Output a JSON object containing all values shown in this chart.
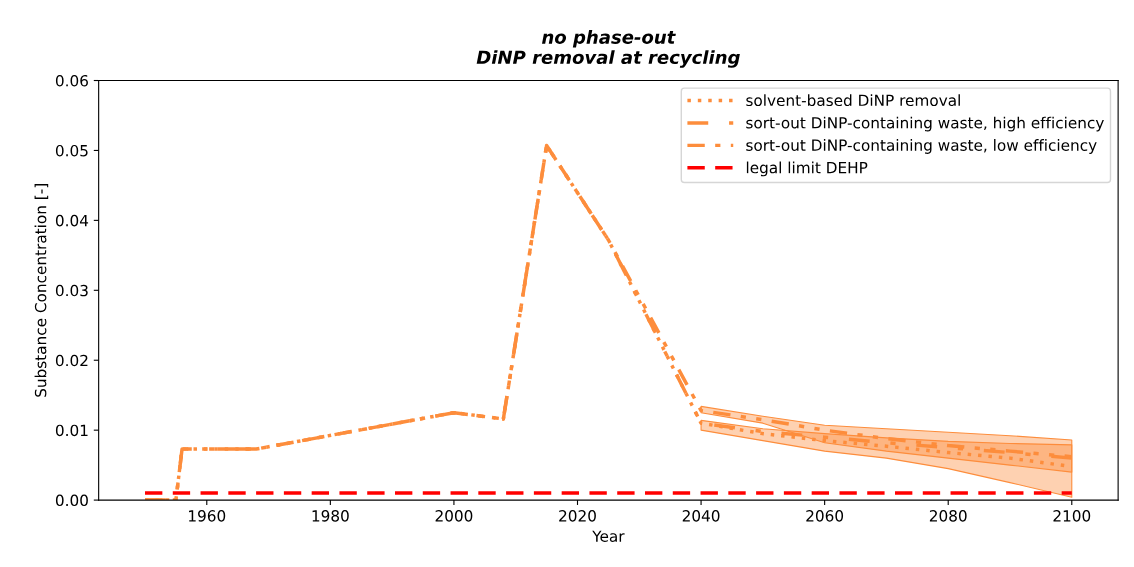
{
  "chart_data": {
    "type": "line",
    "title": "no phase-out\nDiNP removal at recycling",
    "xlabel": "Year",
    "ylabel": "Substance Concentration [-]",
    "x": [
      1950,
      1955,
      1956,
      1968,
      2000,
      2008,
      2015,
      2025,
      2040,
      2050,
      2060,
      2070,
      2080,
      2090,
      2100
    ],
    "xlim": [
      1942.5,
      2107.5
    ],
    "xticks": [
      1960,
      1980,
      2000,
      2020,
      2040,
      2060,
      2080,
      2100
    ],
    "ylim": [
      0,
      0.06
    ],
    "yticks": [
      {
        "value": 0,
        "label": "0.00"
      },
      0.01,
      0.02,
      0.03,
      0.04,
      0.05,
      0.06
    ],
    "grid": false,
    "legend": "top right",
    "series": [
      {
        "name": "solvent-based DiNP removal",
        "color": "#fd8d3c",
        "line_style": "dotted",
        "values": [
          0,
          0,
          0.0073,
          0.0073,
          0.0125,
          0.0116,
          0.0507,
          0.0372,
          0.011,
          0.0095,
          0.0085,
          0.0077,
          0.0068,
          0.006,
          0.0048
        ]
      },
      {
        "name": "sort-out DiNP-containing waste, high efficiency",
        "color": "#fd8d3c",
        "line_style": "dashdot",
        "values": [
          0,
          0,
          0.0073,
          0.0073,
          0.0125,
          0.0116,
          0.0507,
          0.0372,
          0.011,
          0.0098,
          0.009,
          0.0082,
          0.0075,
          0.0068,
          0.006
        ],
        "lower": [
          null,
          null,
          null,
          null,
          null,
          null,
          null,
          null,
          0.01,
          0.0085,
          0.007,
          0.006,
          0.0045,
          0.0025,
          0.0004
        ],
        "upper": [
          null,
          null,
          null,
          null,
          null,
          null,
          null,
          null,
          0.0114,
          0.0102,
          0.0095,
          0.0089,
          0.0084,
          0.0081,
          0.0079
        ]
      },
      {
        "name": "sort-out DiNP-containing waste, low efficiency",
        "color": "#fd8d3c",
        "line_style": "dashdotdot",
        "values": [
          0,
          0,
          0.0073,
          0.0073,
          0.0125,
          0.0116,
          0.0507,
          0.0372,
          0.0128,
          0.0115,
          0.01,
          0.0088,
          0.0078,
          0.007,
          0.0062
        ],
        "lower": [
          null,
          null,
          null,
          null,
          null,
          null,
          null,
          null,
          0.0125,
          0.011,
          0.0082,
          0.007,
          0.006,
          0.005,
          0.004
        ],
        "upper": [
          null,
          null,
          null,
          null,
          null,
          null,
          null,
          null,
          0.0134,
          0.012,
          0.0107,
          0.0102,
          0.0097,
          0.0092,
          0.0086
        ]
      },
      {
        "name": "legal limit DEHP",
        "color": "#ff0000",
        "line_style": "dashed",
        "x": [
          1950,
          2100
        ],
        "values": [
          0.001,
          0.001
        ]
      }
    ]
  }
}
